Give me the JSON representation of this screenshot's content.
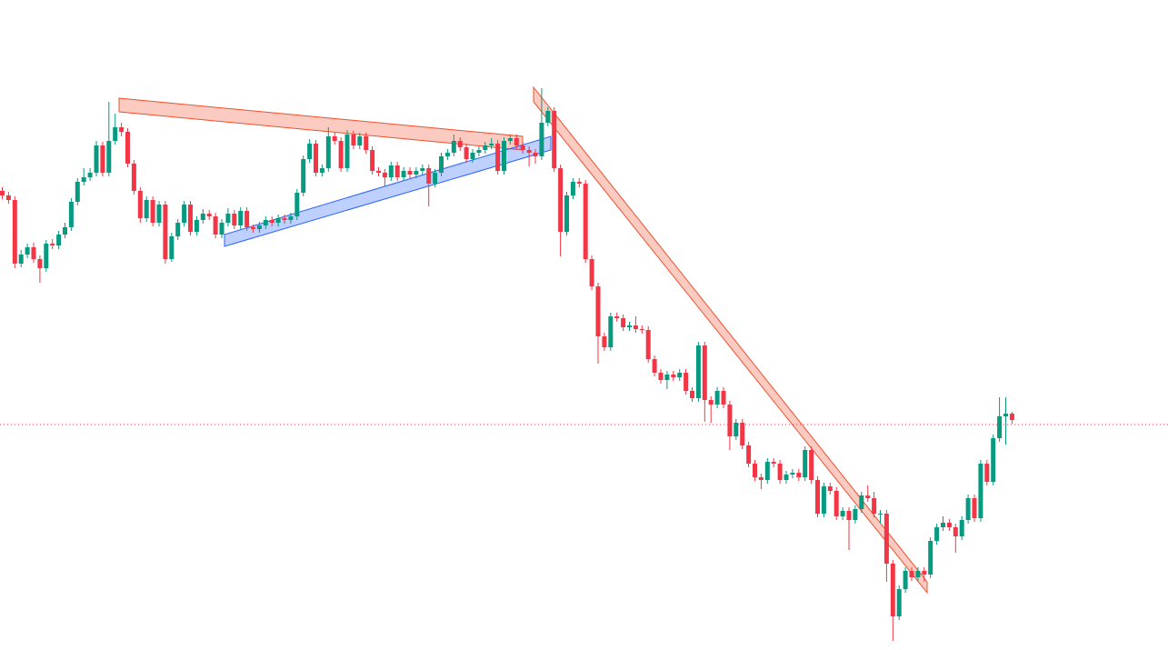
{
  "chart_data": {
    "type": "candlestick",
    "up_color": "#089981",
    "down_color": "#f23645",
    "ylim": [
      0,
      715
    ],
    "open": [
      505,
      500,
      495,
      425,
      435,
      443,
      430,
      420,
      447,
      445,
      457,
      465,
      493,
      515,
      520,
      525,
      555,
      525,
      560,
      575,
      570,
      535,
      505,
      475,
      495,
      470,
      490,
      430,
      455,
      470,
      490,
      460,
      473,
      480,
      477,
      457,
      470,
      480,
      467,
      483,
      465,
      463,
      467,
      473,
      470,
      475,
      473,
      477,
      503,
      540,
      557,
      525,
      530,
      565,
      560,
      530,
      567,
      555,
      565,
      550,
      527,
      525,
      520,
      533,
      520,
      527,
      523,
      527,
      530,
      513,
      525,
      543,
      547,
      560,
      553,
      540,
      547,
      550,
      555,
      557,
      527,
      560,
      563,
      555,
      550,
      547,
      543,
      580,
      593,
      530,
      460,
      500,
      515,
      513,
      430,
      400,
      345,
      333,
      367,
      365,
      355,
      357,
      353,
      352,
      320,
      305,
      297,
      303,
      300,
      305,
      285,
      277,
      335,
      275,
      270,
      285,
      270,
      235,
      250,
      225,
      205,
      190,
      187,
      207,
      205,
      187,
      193,
      195,
      190,
      220,
      187,
      150,
      180,
      175,
      147,
      153,
      143,
      155,
      170,
      167,
      150,
      150,
      95,
      37,
      67,
      87,
      80,
      87,
      83,
      120,
      135,
      140,
      135,
      125,
      143,
      167,
      145,
      205,
      185,
      233,
      257,
      260
    ],
    "high": [
      509,
      504,
      499,
      440,
      447,
      448,
      434,
      451,
      452,
      461,
      470,
      497,
      519,
      530,
      530,
      560,
      559,
      603,
      590,
      580,
      574,
      539,
      509,
      499,
      499,
      494,
      494,
      459,
      474,
      494,
      494,
      477,
      485,
      484,
      481,
      474,
      486,
      484,
      487,
      487,
      468,
      471,
      477,
      477,
      479,
      479,
      481,
      507,
      544,
      562,
      561,
      534,
      575,
      569,
      564,
      572,
      571,
      569,
      569,
      554,
      531,
      529,
      537,
      537,
      531,
      531,
      531,
      534,
      534,
      529,
      547,
      551,
      567,
      564,
      557,
      551,
      554,
      559,
      563,
      561,
      564,
      567,
      567,
      559,
      554,
      551,
      618,
      597,
      597,
      534,
      504,
      519,
      519,
      517,
      434,
      404,
      349,
      371,
      371,
      369,
      361,
      367,
      357,
      356,
      324,
      309,
      307,
      307,
      309,
      309,
      289,
      339,
      339,
      279,
      289,
      289,
      274,
      254,
      254,
      229,
      209,
      194,
      211,
      211,
      209,
      197,
      199,
      199,
      224,
      224,
      191,
      184,
      184,
      179,
      157,
      157,
      159,
      174,
      181,
      174,
      154,
      154,
      99,
      71,
      91,
      91,
      91,
      91,
      124,
      139,
      147,
      144,
      139,
      147,
      171,
      171,
      209,
      209,
      237,
      278,
      278,
      262
    ],
    "low": [
      496,
      491,
      420,
      421,
      431,
      426,
      404,
      416,
      441,
      441,
      453,
      461,
      489,
      511,
      516,
      521,
      521,
      521,
      556,
      565,
      531,
      501,
      470,
      471,
      466,
      466,
      425,
      427,
      451,
      466,
      456,
      456,
      469,
      473,
      453,
      453,
      466,
      463,
      463,
      461,
      459,
      459,
      463,
      466,
      466,
      469,
      469,
      473,
      499,
      536,
      521,
      521,
      526,
      556,
      526,
      526,
      551,
      551,
      546,
      523,
      521,
      510,
      516,
      516,
      516,
      519,
      519,
      523,
      488,
      509,
      521,
      539,
      543,
      549,
      536,
      536,
      543,
      546,
      551,
      523,
      523,
      556,
      551,
      546,
      532,
      535,
      539,
      576,
      526,
      433,
      456,
      496,
      509,
      426,
      396,
      315,
      329,
      329,
      361,
      351,
      351,
      349,
      348,
      316,
      301,
      293,
      287,
      296,
      296,
      281,
      273,
      273,
      251,
      250,
      266,
      266,
      220,
      231,
      221,
      201,
      186,
      177,
      183,
      201,
      183,
      183,
      189,
      186,
      186,
      183,
      146,
      146,
      171,
      143,
      143,
      110,
      139,
      151,
      163,
      146,
      140,
      75,
      10,
      33,
      63,
      76,
      76,
      75,
      79,
      116,
      131,
      131,
      107,
      121,
      139,
      141,
      141,
      181,
      181,
      229,
      226,
      249
    ],
    "close": [
      500,
      495,
      425,
      435,
      443,
      430,
      420,
      447,
      445,
      457,
      465,
      493,
      515,
      520,
      525,
      555,
      525,
      560,
      575,
      570,
      535,
      505,
      475,
      495,
      470,
      490,
      430,
      455,
      470,
      490,
      460,
      473,
      480,
      477,
      457,
      470,
      480,
      467,
      483,
      465,
      463,
      467,
      473,
      470,
      475,
      473,
      477,
      503,
      540,
      557,
      525,
      530,
      565,
      560,
      530,
      567,
      555,
      565,
      550,
      527,
      525,
      520,
      533,
      520,
      527,
      523,
      527,
      530,
      513,
      525,
      543,
      547,
      560,
      553,
      540,
      547,
      550,
      555,
      557,
      527,
      560,
      563,
      555,
      550,
      547,
      543,
      580,
      593,
      530,
      460,
      500,
      515,
      513,
      430,
      400,
      345,
      333,
      367,
      365,
      355,
      357,
      353,
      352,
      320,
      305,
      297,
      303,
      300,
      305,
      285,
      277,
      335,
      275,
      270,
      285,
      270,
      235,
      250,
      225,
      205,
      190,
      187,
      207,
      205,
      187,
      193,
      195,
      190,
      220,
      187,
      150,
      180,
      175,
      147,
      153,
      143,
      155,
      170,
      167,
      150,
      150,
      95,
      37,
      67,
      87,
      80,
      87,
      83,
      120,
      135,
      140,
      135,
      125,
      143,
      167,
      145,
      205,
      185,
      233,
      257,
      260,
      253
    ]
  }
}
